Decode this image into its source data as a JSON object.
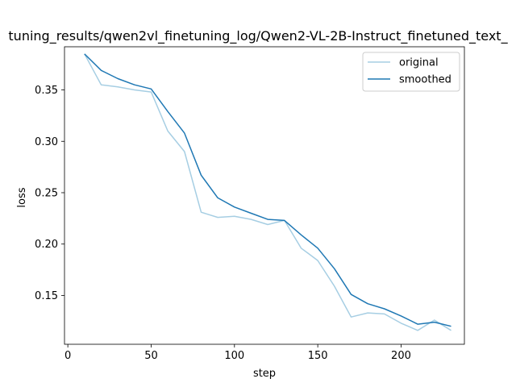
{
  "chart_data": {
    "type": "line",
    "title": "tuning_results/qwen2vl_finetuning_log/Qwen2-VL-2B-Instruct_finetuned_text_",
    "xlabel": "step",
    "ylabel": "loss",
    "xlim": [
      -2,
      238
    ],
    "ylim": [
      0.1025,
      0.392
    ],
    "xticks": [
      0,
      50,
      100,
      150,
      200
    ],
    "yticks": [
      0.15,
      0.2,
      0.25,
      0.3,
      0.35
    ],
    "xtick_labels": [
      "0",
      "50",
      "100",
      "150",
      "200"
    ],
    "ytick_labels": [
      "0.15",
      "0.20",
      "0.25",
      "0.30",
      "0.35"
    ],
    "grid": false,
    "legend_position": "top-right",
    "x": [
      10,
      20,
      30,
      40,
      50,
      60,
      70,
      80,
      90,
      100,
      110,
      120,
      130,
      140,
      150,
      160,
      170,
      180,
      190,
      200,
      210,
      220,
      230
    ],
    "series": [
      {
        "name": "original",
        "color": "#a6cee3",
        "values": [
          0.385,
          0.355,
          0.353,
          0.35,
          0.348,
          0.31,
          0.29,
          0.231,
          0.226,
          0.227,
          0.224,
          0.219,
          0.223,
          0.196,
          0.184,
          0.159,
          0.129,
          0.133,
          0.132,
          0.123,
          0.116,
          0.126,
          0.116
        ]
      },
      {
        "name": "smoothed",
        "color": "#1f78b4",
        "values": [
          0.385,
          0.369,
          0.361,
          0.355,
          0.351,
          0.329,
          0.308,
          0.267,
          0.245,
          0.236,
          0.23,
          0.224,
          0.223,
          0.209,
          0.196,
          0.176,
          0.151,
          0.142,
          0.137,
          0.13,
          0.122,
          0.124,
          0.12
        ]
      }
    ]
  }
}
